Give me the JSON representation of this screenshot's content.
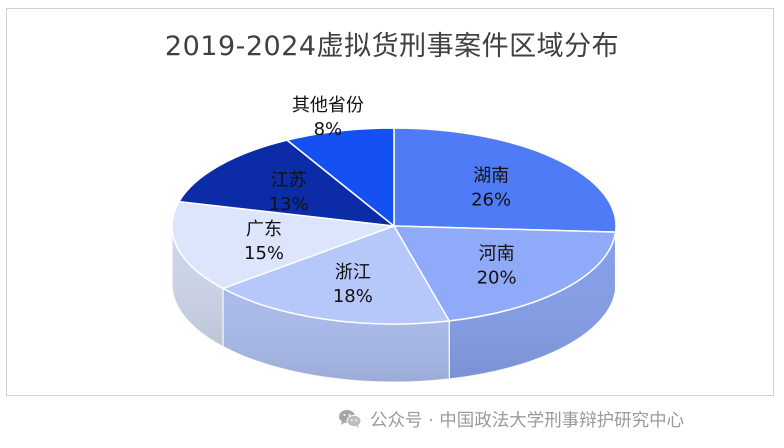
{
  "chart_data": {
    "type": "pie",
    "title": "2019-2024虚拟货刑事案件区域分布",
    "slices": [
      {
        "label": "湖南",
        "value": 26,
        "value_label": "26%",
        "color": "#4F7CF6"
      },
      {
        "label": "河南",
        "value": 20,
        "value_label": "20%",
        "color": "#8FAAF8"
      },
      {
        "label": "浙江",
        "value": 18,
        "value_label": "18%",
        "color": "#B6C8FA"
      },
      {
        "label": "广东",
        "value": 15,
        "value_label": "15%",
        "color": "#DCE5FC"
      },
      {
        "label": "江苏",
        "value": 13,
        "value_label": "13%",
        "color": "#0B2CA6"
      },
      {
        "label": "其他省份",
        "value": 8,
        "value_label": "8%",
        "color": "#1450F2"
      }
    ],
    "style": "3d-pie",
    "legend": "none"
  },
  "watermark": {
    "icon": "wechat-icon",
    "text": "公众号 · 中国政法大学刑事辩护研究中心"
  }
}
